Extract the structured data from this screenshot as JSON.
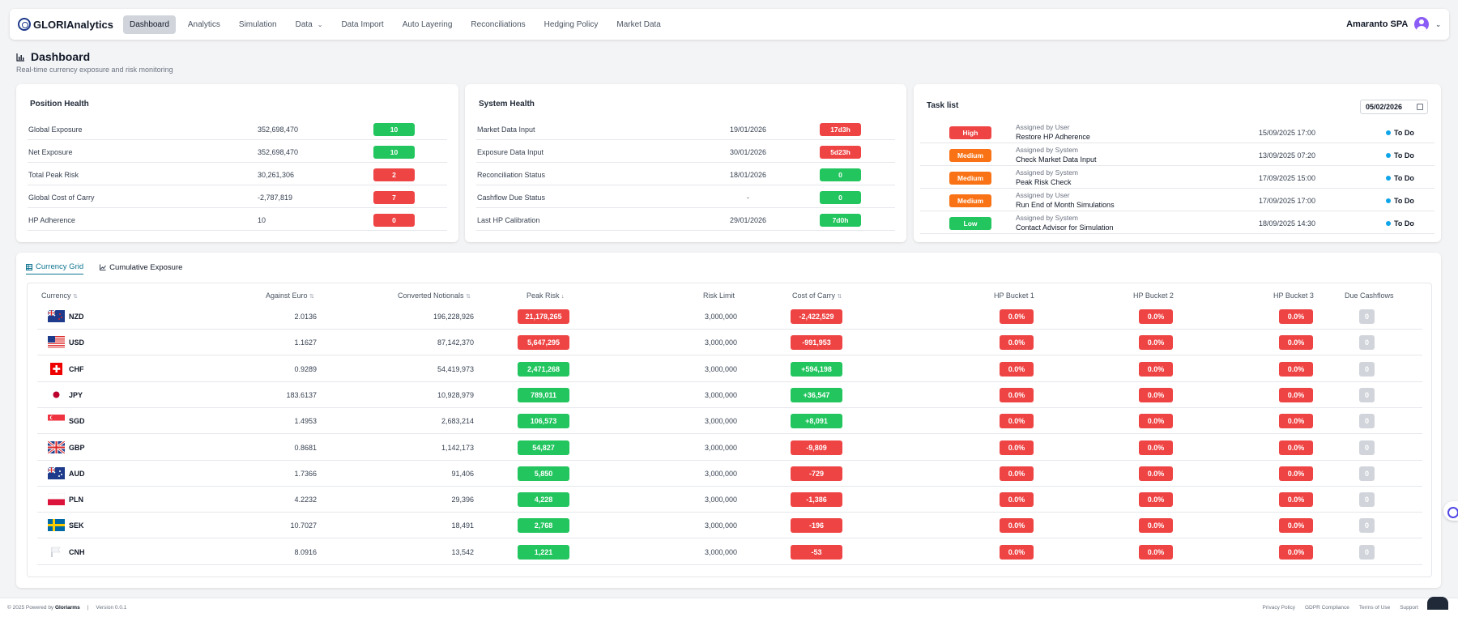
{
  "brand": {
    "name": "GLORIAnalytics"
  },
  "nav": {
    "items": [
      {
        "label": "Dashboard",
        "active": true
      },
      {
        "label": "Analytics"
      },
      {
        "label": "Simulation"
      },
      {
        "label": "Data",
        "dropdown": true
      },
      {
        "label": "Data Import"
      },
      {
        "label": "Auto Layering"
      },
      {
        "label": "Reconciliations"
      },
      {
        "label": "Hedging Policy"
      },
      {
        "label": "Market Data"
      }
    ],
    "user": "Amaranto SPA"
  },
  "page": {
    "title": "Dashboard",
    "subtitle": "Real-time currency exposure and risk monitoring"
  },
  "position_health": {
    "title": "Position Health",
    "rows": [
      {
        "label": "Global Exposure",
        "value": "352,698,470",
        "badge": "10",
        "color": "green"
      },
      {
        "label": "Net Exposure",
        "value": "352,698,470",
        "badge": "10",
        "color": "green"
      },
      {
        "label": "Total Peak Risk",
        "value": "30,261,306",
        "badge": "2",
        "color": "red"
      },
      {
        "label": "Global Cost of Carry",
        "value": "-2,787,819",
        "badge": "7",
        "color": "red"
      },
      {
        "label": "HP Adherence",
        "value": "10",
        "badge": "0",
        "color": "red"
      }
    ]
  },
  "system_health": {
    "title": "System Health",
    "rows": [
      {
        "label": "Market Data Input",
        "date": "19/01/2026",
        "badge": "17d3h",
        "color": "red"
      },
      {
        "label": "Exposure Data Input",
        "date": "30/01/2026",
        "badge": "5d23h",
        "color": "red"
      },
      {
        "label": "Reconciliation Status",
        "date": "18/01/2026",
        "badge": "0",
        "color": "green"
      },
      {
        "label": "Cashflow Due Status",
        "date": "-",
        "badge": "0",
        "color": "green"
      },
      {
        "label": "Last HP Calibration",
        "date": "29/01/2026",
        "badge": "7d0h",
        "color": "green"
      }
    ]
  },
  "task_list": {
    "title": "Task list",
    "date": "05/02/2026",
    "tasks": [
      {
        "priority": "High",
        "color": "red",
        "assigned": "Assigned by User",
        "name": "Restore HP Adherence",
        "date": "15/09/2025 17:00",
        "status": "To Do"
      },
      {
        "priority": "Medium",
        "color": "orange",
        "assigned": "Assigned by System",
        "name": "Check Market Data Input",
        "date": "13/09/2025 07:20",
        "status": "To Do"
      },
      {
        "priority": "Medium",
        "color": "orange",
        "assigned": "Assigned by System",
        "name": "Peak Risk Check",
        "date": "17/09/2025 15:00",
        "status": "To Do"
      },
      {
        "priority": "Medium",
        "color": "orange",
        "assigned": "Assigned by User",
        "name": "Run End of Month Simulations",
        "date": "17/09/2025 17:00",
        "status": "To Do"
      },
      {
        "priority": "Low",
        "color": "green",
        "assigned": "Assigned by System",
        "name": "Contact Advisor for Simulation",
        "date": "18/09/2025 14:30",
        "status": "To Do"
      }
    ]
  },
  "tabs": [
    {
      "label": "Currency Grid",
      "active": true
    },
    {
      "label": "Cumulative Exposure"
    }
  ],
  "grid": {
    "headers": {
      "currency": "Currency",
      "against_euro": "Against Euro",
      "converted": "Converted Notionals",
      "peak_risk": "Peak Risk",
      "risk_limit": "Risk Limit",
      "cost_of_carry": "Cost of Carry",
      "hp1": "HP Bucket 1",
      "hp2": "HP Bucket 2",
      "hp3": "HP Bucket 3",
      "due": "Due Cashflows"
    },
    "rows": [
      {
        "ccy": "NZD",
        "flag": "nz",
        "eur": "2.0136",
        "notional": "196,228,926",
        "peak": "21,178,265",
        "peak_color": "red",
        "limit": "3,000,000",
        "carry": "-2,422,529",
        "carry_color": "red",
        "hp1": "0.0%",
        "hp2": "0.0%",
        "hp3": "0.0%",
        "due": "0"
      },
      {
        "ccy": "USD",
        "flag": "us",
        "eur": "1.1627",
        "notional": "87,142,370",
        "peak": "5,647,295",
        "peak_color": "red",
        "limit": "3,000,000",
        "carry": "-991,953",
        "carry_color": "red",
        "hp1": "0.0%",
        "hp2": "0.0%",
        "hp3": "0.0%",
        "due": "0"
      },
      {
        "ccy": "CHF",
        "flag": "ch",
        "eur": "0.9289",
        "notional": "54,419,973",
        "peak": "2,471,268",
        "peak_color": "green",
        "limit": "3,000,000",
        "carry": "+594,198",
        "carry_color": "green",
        "hp1": "0.0%",
        "hp2": "0.0%",
        "hp3": "0.0%",
        "due": "0"
      },
      {
        "ccy": "JPY",
        "flag": "jp",
        "eur": "183.6137",
        "notional": "10,928,979",
        "peak": "789,011",
        "peak_color": "green",
        "limit": "3,000,000",
        "carry": "+36,547",
        "carry_color": "green",
        "hp1": "0.0%",
        "hp2": "0.0%",
        "hp3": "0.0%",
        "due": "0"
      },
      {
        "ccy": "SGD",
        "flag": "sg",
        "eur": "1.4953",
        "notional": "2,683,214",
        "peak": "106,573",
        "peak_color": "green",
        "limit": "3,000,000",
        "carry": "+8,091",
        "carry_color": "green",
        "hp1": "0.0%",
        "hp2": "0.0%",
        "hp3": "0.0%",
        "due": "0"
      },
      {
        "ccy": "GBP",
        "flag": "gb",
        "eur": "0.8681",
        "notional": "1,142,173",
        "peak": "54,827",
        "peak_color": "green",
        "limit": "3,000,000",
        "carry": "-9,809",
        "carry_color": "red",
        "hp1": "0.0%",
        "hp2": "0.0%",
        "hp3": "0.0%",
        "due": "0"
      },
      {
        "ccy": "AUD",
        "flag": "au",
        "eur": "1.7366",
        "notional": "91,406",
        "peak": "5,850",
        "peak_color": "green",
        "limit": "3,000,000",
        "carry": "-729",
        "carry_color": "red",
        "hp1": "0.0%",
        "hp2": "0.0%",
        "hp3": "0.0%",
        "due": "0"
      },
      {
        "ccy": "PLN",
        "flag": "pl",
        "eur": "4.2232",
        "notional": "29,396",
        "peak": "4,228",
        "peak_color": "green",
        "limit": "3,000,000",
        "carry": "-1,386",
        "carry_color": "red",
        "hp1": "0.0%",
        "hp2": "0.0%",
        "hp3": "0.0%",
        "due": "0"
      },
      {
        "ccy": "SEK",
        "flag": "se",
        "eur": "10.7027",
        "notional": "18,491",
        "peak": "2,768",
        "peak_color": "green",
        "limit": "3,000,000",
        "carry": "-196",
        "carry_color": "red",
        "hp1": "0.0%",
        "hp2": "0.0%",
        "hp3": "0.0%",
        "due": "0"
      },
      {
        "ccy": "CNH",
        "flag": "white",
        "eur": "8.0916",
        "notional": "13,542",
        "peak": "1,221",
        "peak_color": "green",
        "limit": "3,000,000",
        "carry": "-53",
        "carry_color": "red",
        "hp1": "0.0%",
        "hp2": "0.0%",
        "hp3": "0.0%",
        "due": "0"
      }
    ]
  },
  "footer": {
    "copyright": "© 2025 Powered by",
    "company": "Gloriarms",
    "version": "Version 0.0.1",
    "links": [
      "Privacy Policy",
      "GDPR Compliance",
      "Terms of Use",
      "Support"
    ]
  }
}
